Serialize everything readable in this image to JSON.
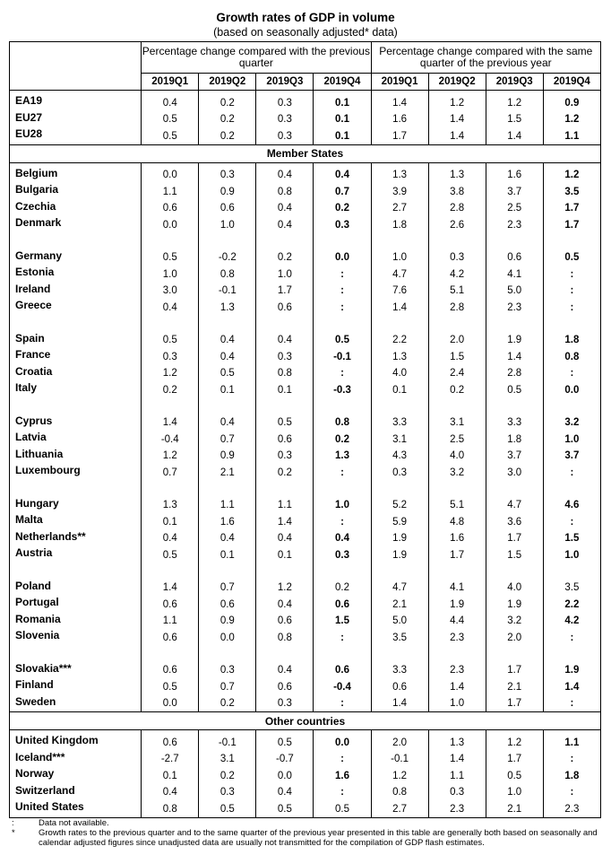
{
  "title": "Growth rates of GDP in volume",
  "subtitle": "(based on seasonally adjusted* data)",
  "headers": {
    "group1": "Percentage change compared with the previous quarter",
    "group2": "Percentage change compared with the same quarter of the previous year",
    "quarters": [
      "2019Q1",
      "2019Q2",
      "2019Q3",
      "2019Q4",
      "2019Q1",
      "2019Q2",
      "2019Q3",
      "2019Q4"
    ]
  },
  "sections": {
    "member_states": "Member States",
    "other_countries": "Other countries"
  },
  "aggregates": [
    {
      "name": "EA19",
      "values": [
        "0.4",
        "0.2",
        "0.3",
        "0.1",
        "1.4",
        "1.2",
        "1.2",
        "0.9"
      ]
    },
    {
      "name": "EU27",
      "values": [
        "0.5",
        "0.2",
        "0.3",
        "0.1",
        "1.6",
        "1.4",
        "1.5",
        "1.2"
      ]
    },
    {
      "name": "EU28",
      "values": [
        "0.5",
        "0.2",
        "0.3",
        "0.1",
        "1.7",
        "1.4",
        "1.4",
        "1.1"
      ]
    }
  ],
  "member_groups": [
    [
      {
        "name": "Belgium",
        "values": [
          "0.0",
          "0.3",
          "0.4",
          "0.4",
          "1.3",
          "1.3",
          "1.6",
          "1.2"
        ]
      },
      {
        "name": "Bulgaria",
        "values": [
          "1.1",
          "0.9",
          "0.8",
          "0.7",
          "3.9",
          "3.8",
          "3.7",
          "3.5"
        ]
      },
      {
        "name": "Czechia",
        "values": [
          "0.6",
          "0.6",
          "0.4",
          "0.2",
          "2.7",
          "2.8",
          "2.5",
          "1.7"
        ]
      },
      {
        "name": "Denmark",
        "values": [
          "0.0",
          "1.0",
          "0.4",
          "0.3",
          "1.8",
          "2.6",
          "2.3",
          "1.7"
        ]
      }
    ],
    [
      {
        "name": "Germany",
        "values": [
          "0.5",
          "-0.2",
          "0.2",
          "0.0",
          "1.0",
          "0.3",
          "0.6",
          "0.5"
        ]
      },
      {
        "name": "Estonia",
        "values": [
          "1.0",
          "0.8",
          "1.0",
          ":",
          "4.7",
          "4.2",
          "4.1",
          ":"
        ]
      },
      {
        "name": "Ireland",
        "values": [
          "3.0",
          "-0.1",
          "1.7",
          ":",
          "7.6",
          "5.1",
          "5.0",
          ":"
        ]
      },
      {
        "name": "Greece",
        "values": [
          "0.4",
          "1.3",
          "0.6",
          ":",
          "1.4",
          "2.8",
          "2.3",
          ":"
        ]
      }
    ],
    [
      {
        "name": "Spain",
        "values": [
          "0.5",
          "0.4",
          "0.4",
          "0.5",
          "2.2",
          "2.0",
          "1.9",
          "1.8"
        ]
      },
      {
        "name": "France",
        "values": [
          "0.3",
          "0.4",
          "0.3",
          "-0.1",
          "1.3",
          "1.5",
          "1.4",
          "0.8"
        ]
      },
      {
        "name": "Croatia",
        "values": [
          "1.2",
          "0.5",
          "0.8",
          ":",
          "4.0",
          "2.4",
          "2.8",
          ":"
        ]
      },
      {
        "name": "Italy",
        "values": [
          "0.2",
          "0.1",
          "0.1",
          "-0.3",
          "0.1",
          "0.2",
          "0.5",
          "0.0"
        ]
      }
    ],
    [
      {
        "name": "Cyprus",
        "values": [
          "1.4",
          "0.4",
          "0.5",
          "0.8",
          "3.3",
          "3.1",
          "3.3",
          "3.2"
        ]
      },
      {
        "name": "Latvia",
        "values": [
          "-0.4",
          "0.7",
          "0.6",
          "0.2",
          "3.1",
          "2.5",
          "1.8",
          "1.0"
        ]
      },
      {
        "name": "Lithuania",
        "values": [
          "1.2",
          "0.9",
          "0.3",
          "1.3",
          "4.3",
          "4.0",
          "3.7",
          "3.7"
        ]
      },
      {
        "name": "Luxembourg",
        "values": [
          "0.7",
          "2.1",
          "0.2",
          ":",
          "0.3",
          "3.2",
          "3.0",
          ":"
        ]
      }
    ],
    [
      {
        "name": "Hungary",
        "values": [
          "1.3",
          "1.1",
          "1.1",
          "1.0",
          "5.2",
          "5.1",
          "4.7",
          "4.6"
        ]
      },
      {
        "name": "Malta",
        "values": [
          "0.1",
          "1.6",
          "1.4",
          ":",
          "5.9",
          "4.8",
          "3.6",
          ":"
        ]
      },
      {
        "name": "Netherlands**",
        "values": [
          "0.4",
          "0.4",
          "0.4",
          "0.4",
          "1.9",
          "1.6",
          "1.7",
          "1.5"
        ]
      },
      {
        "name": "Austria",
        "values": [
          "0.5",
          "0.1",
          "0.1",
          "0.3",
          "1.9",
          "1.7",
          "1.5",
          "1.0"
        ]
      }
    ],
    [
      {
        "name": "Poland",
        "values": [
          "1.4",
          "0.7",
          "1.2",
          "0.2",
          "4.7",
          "4.1",
          "4.0",
          "3.5"
        ],
        "q4_plain": true
      },
      {
        "name": "Portugal",
        "values": [
          "0.6",
          "0.6",
          "0.4",
          "0.6",
          "2.1",
          "1.9",
          "1.9",
          "2.2"
        ]
      },
      {
        "name": "Romania",
        "values": [
          "1.1",
          "0.9",
          "0.6",
          "1.5",
          "5.0",
          "4.4",
          "3.2",
          "4.2"
        ]
      },
      {
        "name": "Slovenia",
        "values": [
          "0.6",
          "0.0",
          "0.8",
          ":",
          "3.5",
          "2.3",
          "2.0",
          ":"
        ]
      }
    ],
    [
      {
        "name": "Slovakia***",
        "values": [
          "0.6",
          "0.3",
          "0.4",
          "0.6",
          "3.3",
          "2.3",
          "1.7",
          "1.9"
        ]
      },
      {
        "name": "Finland",
        "values": [
          "0.5",
          "0.7",
          "0.6",
          "-0.4",
          "0.6",
          "1.4",
          "2.1",
          "1.4"
        ]
      },
      {
        "name": "Sweden",
        "values": [
          "0.0",
          "0.2",
          "0.3",
          ":",
          "1.4",
          "1.0",
          "1.7",
          ":"
        ]
      }
    ]
  ],
  "other_countries": [
    {
      "name": "United Kingdom",
      "values": [
        "0.6",
        "-0.1",
        "0.5",
        "0.0",
        "2.0",
        "1.3",
        "1.2",
        "1.1"
      ]
    },
    {
      "name": "Iceland***",
      "values": [
        "-2.7",
        "3.1",
        "-0.7",
        ":",
        "-0.1",
        "1.4",
        "1.7",
        ":"
      ]
    },
    {
      "name": "Norway",
      "values": [
        "0.1",
        "0.2",
        "0.0",
        "1.6",
        "1.2",
        "1.1",
        "0.5",
        "1.8"
      ]
    },
    {
      "name": "Switzerland",
      "values": [
        "0.4",
        "0.3",
        "0.4",
        ":",
        "0.8",
        "0.3",
        "1.0",
        ":"
      ]
    },
    {
      "name": "United States",
      "values": [
        "0.8",
        "0.5",
        "0.5",
        "0.5",
        "2.7",
        "2.3",
        "2.1",
        "2.3"
      ],
      "q4_plain": true
    }
  ],
  "notes": [
    {
      "symbol": ":",
      "text": "Data not available."
    },
    {
      "symbol": "*",
      "text": "Growth rates to the previous quarter and to the same quarter of the previous year presented in this table are generally both based on seasonally and calendar adjusted figures since unadjusted data are usually not transmitted for the compilation of GDP flash estimates."
    }
  ]
}
